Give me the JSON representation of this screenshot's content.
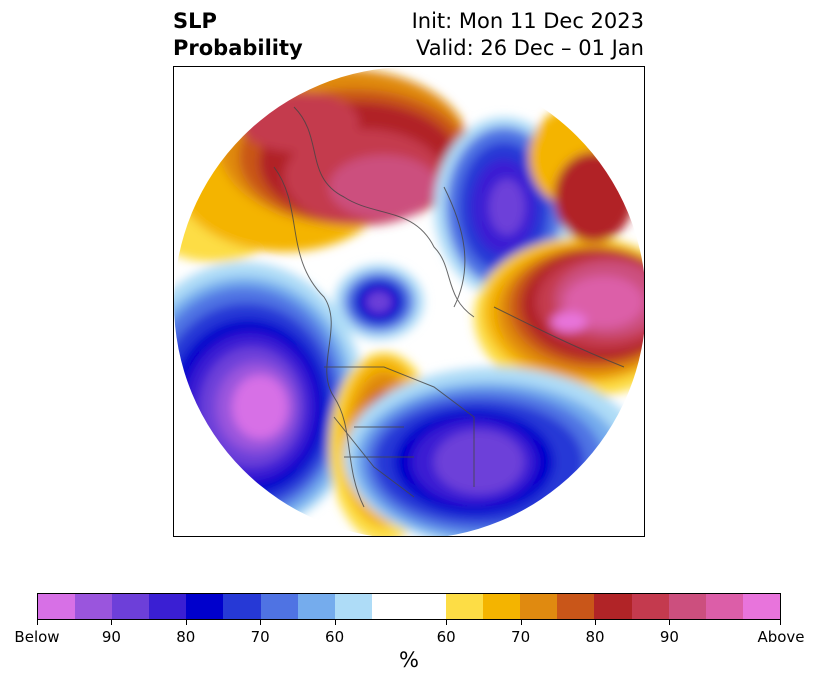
{
  "header": {
    "title_line1": "SLP",
    "title_line2": "Probability",
    "init": "Init: Mon 11 Dec 2023",
    "valid": "Valid: 26 Dec – 01 Jan"
  },
  "colorbar": {
    "colors": [
      "#d770e6",
      "#9a55dd",
      "#6d3fd9",
      "#3a1fd3",
      "#0000cc",
      "#2639d6",
      "#4f73e3",
      "#75aced",
      "#aedcf7",
      "#ffffff",
      "#ffffff",
      "#fddd45",
      "#f4b400",
      "#e08a10",
      "#c95619",
      "#b12427",
      "#c43a4e",
      "#cc4f7e",
      "#dc5ea8",
      "#e874dc"
    ],
    "labels": [
      "Below",
      "90",
      "80",
      "70",
      "60",
      "60",
      "70",
      "80",
      "90",
      "Above"
    ],
    "units": "%"
  }
}
